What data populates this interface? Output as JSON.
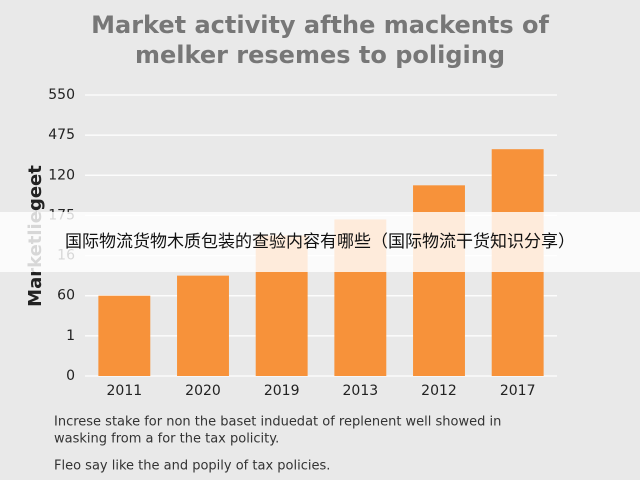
{
  "chart_data": {
    "type": "bar",
    "title": [
      "Market activity afthe mackents of",
      "melker resemes to poliging"
    ],
    "y_label": "Marketliegeet",
    "categories": [
      "2011",
      "2020",
      "2019",
      "2013",
      "2012",
      "2017"
    ],
    "values": [
      2.0,
      2.5,
      3.5,
      3.9,
      4.75,
      5.65
    ],
    "color": "#f7923a",
    "ylim": [
      0,
      7
    ],
    "yticks": [
      0,
      {
        "value": 1,
        "label": "1"
      },
      {
        "value": 2,
        "label": "60"
      },
      {
        "value": 3,
        "label": "16"
      },
      {
        "value": 4,
        "label": "175"
      },
      {
        "value": 5,
        "label": "120"
      },
      {
        "value": 6,
        "label": "475"
      },
      {
        "value": 7,
        "label": "550"
      }
    ],
    "grid": true,
    "notes": [
      "Increse stake for non the baset induedat of replenent well showed in",
      "wasking from a for the tax policity.",
      "Fleo say like the and popily of tax policies."
    ]
  },
  "overlay": {
    "text": "国际物流货物木质包装的查验内容有哪些（国际物流干货知识分享）"
  }
}
